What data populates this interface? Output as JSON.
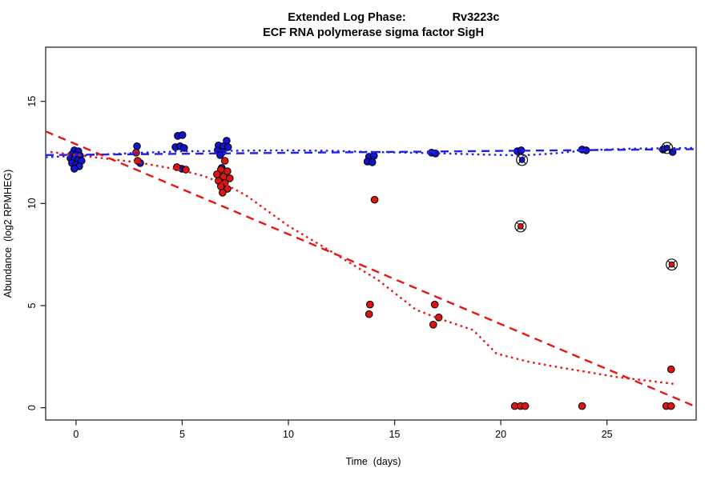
{
  "figure": {
    "title_left": "Extended Log Phase:",
    "title_gene": "Rv3223c",
    "subtitle": "ECF RNA polymerase sigma factor SigH"
  },
  "chart_data": {
    "type": "scatter",
    "title": "Extended Log Phase:     Rv3223c",
    "subtitle": "ECF RNA polymerase sigma factor SigH",
    "xlabel": "Time  (days)",
    "ylabel": "Abundance  (log2 RPMHEG)",
    "xlim": [
      -1.43,
      29.2
    ],
    "ylim": [
      -0.6,
      17.65
    ],
    "x_ticks": [
      0,
      5,
      10,
      15,
      20,
      25
    ],
    "y_ticks": [
      0,
      5,
      10,
      15
    ],
    "grid": false,
    "legend": "none",
    "series": [
      {
        "name": "condition-blue",
        "color": "#1414cc",
        "marker": "circle",
        "points": [
          [
            -0.08,
            12.6
          ],
          [
            0.11,
            12.56
          ],
          [
            -0.19,
            12.41
          ],
          [
            0.0,
            12.37
          ],
          [
            0.19,
            12.33
          ],
          [
            -0.26,
            12.21
          ],
          [
            -0.08,
            12.17
          ],
          [
            0.11,
            12.13
          ],
          [
            0.26,
            12.09
          ],
          [
            -0.19,
            11.98
          ],
          [
            0.0,
            11.9
          ],
          [
            0.15,
            11.82
          ],
          [
            -0.08,
            11.7
          ],
          [
            2.87,
            12.8
          ],
          [
            3.02,
            11.98
          ],
          [
            4.79,
            13.31
          ],
          [
            5.01,
            13.35
          ],
          [
            4.68,
            12.76
          ],
          [
            4.9,
            12.8
          ],
          [
            5.09,
            12.72
          ],
          [
            4.98,
            11.7
          ],
          [
            7.09,
            13.07
          ],
          [
            6.71,
            12.84
          ],
          [
            6.94,
            12.8
          ],
          [
            7.16,
            12.76
          ],
          [
            6.67,
            12.6
          ],
          [
            6.9,
            12.52
          ],
          [
            6.79,
            12.37
          ],
          [
            6.86,
            11.74
          ],
          [
            13.8,
            12.29
          ],
          [
            14.03,
            12.33
          ],
          [
            13.72,
            12.05
          ],
          [
            13.95,
            12.02
          ],
          [
            16.74,
            12.49
          ],
          [
            16.93,
            12.45
          ],
          [
            20.78,
            12.56
          ],
          [
            20.96,
            12.6
          ],
          [
            23.83,
            12.64
          ],
          [
            24.02,
            12.6
          ],
          [
            27.64,
            12.64
          ],
          [
            28.09,
            12.52
          ]
        ]
      },
      {
        "name": "condition-red",
        "color": "#dc1414",
        "marker": "circle",
        "points": [
          [
            2.83,
            12.49
          ],
          [
            2.9,
            12.09
          ],
          [
            4.75,
            11.78
          ],
          [
            5.17,
            11.66
          ],
          [
            7.01,
            12.09
          ],
          [
            6.82,
            11.66
          ],
          [
            7.13,
            11.58
          ],
          [
            6.64,
            11.43
          ],
          [
            6.94,
            11.31
          ],
          [
            7.24,
            11.23
          ],
          [
            6.71,
            11.11
          ],
          [
            7.01,
            11.0
          ],
          [
            6.82,
            10.84
          ],
          [
            7.13,
            10.72
          ],
          [
            6.9,
            10.53
          ],
          [
            14.06,
            10.18
          ],
          [
            13.84,
            5.05
          ],
          [
            13.8,
            4.58
          ],
          [
            16.89,
            5.05
          ],
          [
            17.08,
            4.42
          ],
          [
            16.82,
            4.07
          ],
          [
            20.66,
            0.08
          ],
          [
            20.93,
            0.08
          ],
          [
            21.15,
            0.08
          ],
          [
            23.83,
            0.08
          ],
          [
            28.02,
            1.88
          ],
          [
            27.79,
            0.08
          ],
          [
            28.02,
            0.08
          ]
        ]
      }
    ],
    "flagged_points": [
      {
        "x": 21.0,
        "y": 12.13,
        "color": "#1414cc"
      },
      {
        "x": 20.93,
        "y": 8.88,
        "color": "#dc1414"
      },
      {
        "x": 27.83,
        "y": 12.72,
        "color": "#1414cc"
      },
      {
        "x": 28.05,
        "y": 7.01,
        "color": "#dc1414"
      }
    ],
    "trend_lines": [
      {
        "name": "blue-linear-fit",
        "color": "#2121e8",
        "style": "dashed",
        "points": [
          [
            -1.43,
            12.37
          ],
          [
            29.19,
            12.66
          ]
        ]
      },
      {
        "name": "blue-smooth-fit",
        "color": "#2121e8",
        "style": "dotted",
        "points": [
          [
            -1.43,
            12.26
          ],
          [
            0,
            12.34
          ],
          [
            3,
            12.48
          ],
          [
            5,
            12.55
          ],
          [
            7,
            12.58
          ],
          [
            10,
            12.6
          ],
          [
            12,
            12.58
          ],
          [
            14,
            12.52
          ],
          [
            17,
            12.46
          ],
          [
            19,
            12.4
          ],
          [
            21,
            12.35
          ],
          [
            22.5,
            12.45
          ],
          [
            24,
            12.6
          ],
          [
            26,
            12.68
          ],
          [
            29.19,
            12.72
          ]
        ]
      },
      {
        "name": "red-linear-fit",
        "color": "#e81515",
        "style": "dashed",
        "points": [
          [
            -1.43,
            13.53
          ],
          [
            29.3,
            0.0
          ]
        ]
      },
      {
        "name": "red-smooth-fit",
        "color": "#e81515",
        "style": "dotted",
        "points": [
          [
            -1.2,
            12.52
          ],
          [
            0,
            12.37
          ],
          [
            3,
            12.0
          ],
          [
            5,
            11.62
          ],
          [
            6,
            11.35
          ],
          [
            7,
            10.95
          ],
          [
            8,
            10.4
          ],
          [
            10,
            8.9
          ],
          [
            11.9,
            7.72
          ],
          [
            14.2,
            6.27
          ],
          [
            16,
            4.8
          ],
          [
            17,
            4.4
          ],
          [
            18.7,
            3.8
          ],
          [
            19.8,
            2.65
          ],
          [
            21.3,
            2.25
          ],
          [
            22.8,
            1.97
          ],
          [
            25.5,
            1.5
          ],
          [
            28.3,
            1.15
          ]
        ]
      }
    ]
  },
  "colors": {
    "background": "#ffffff",
    "axis": "#2a2a2a",
    "point_stroke": "#000000",
    "blue_fill": "#1414cc",
    "red_fill": "#dc1414",
    "blue_line": "#2121e8",
    "red_line": "#e81515"
  }
}
